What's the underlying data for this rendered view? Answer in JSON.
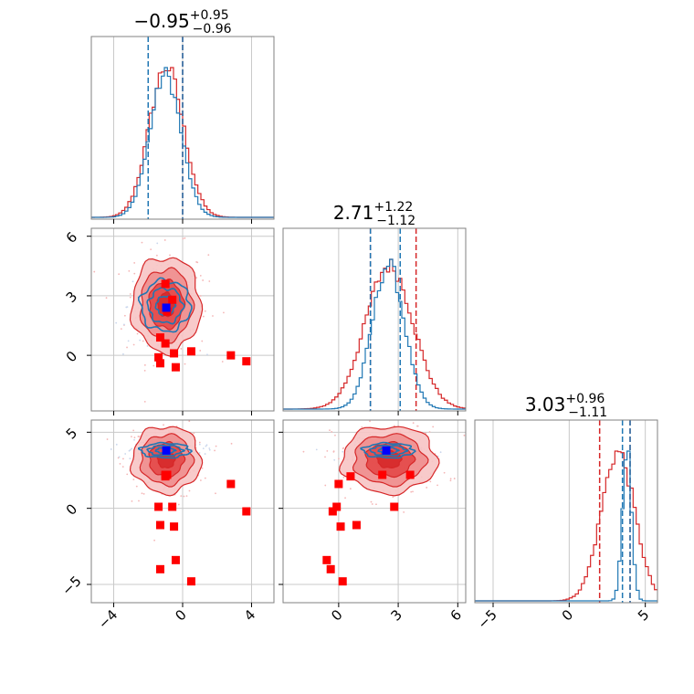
{
  "colors": {
    "red": "#d62728",
    "blue": "#1f77b4",
    "marker_blue": "#0000ff",
    "marker_red": "#ff0000",
    "grid": "#c8c8c8",
    "frame": "#808080"
  },
  "titles": [
    {
      "base": "−0.95",
      "sup": "+0.95",
      "sub": "−0.96"
    },
    {
      "base": "2.71",
      "sup": "+1.22",
      "sub": "−1.12"
    },
    {
      "base": "3.03",
      "sup": "+0.96",
      "sub": "−1.11"
    }
  ],
  "chart_data": {
    "type": "corner",
    "params": [
      {
        "range": [
          -5.3,
          5.3
        ],
        "ticks": [
          -4,
          0,
          4
        ]
      },
      {
        "range": [
          -2.8,
          6.4
        ],
        "ticks": [
          0,
          3,
          6
        ]
      },
      {
        "range": [
          -6.2,
          5.8
        ],
        "ticks": [
          -5,
          0,
          5
        ]
      }
    ],
    "grid": true,
    "series": [
      {
        "color": "red",
        "median": [
          -0.95,
          2.71,
          3.03
        ],
        "quantile_lines": [
          [
            -2.0,
            0.0
          ],
          [
            1.6,
            3.9
          ],
          [
            2.0,
            4.0
          ]
        ],
        "centers": [
          -0.95,
          2.55,
          3.2
        ],
        "sigmas": [
          1.0,
          1.2,
          1.1
        ]
      },
      {
        "color": "blue",
        "median": [
          -0.95,
          2.71,
          3.03
        ],
        "quantile_lines": [
          [
            -2.0,
            0.0
          ],
          [
            1.6,
            3.1
          ],
          [
            3.5,
            4.0
          ]
        ],
        "centers": [
          -1.0,
          2.5,
          3.8
        ],
        "sigmas": [
          0.9,
          0.8,
          0.3
        ]
      }
    ],
    "markers_red": [
      [
        -0.6,
        2.8,
        0.1
      ],
      [
        -1.0,
        3.6,
        2.2
      ],
      [
        -1.4,
        -0.1,
        0.1
      ],
      [
        -0.9,
        2.2,
        2.2
      ],
      [
        0.5,
        0.2,
        -4.8
      ],
      [
        -0.4,
        -0.6,
        -3.4
      ],
      [
        -1.3,
        -0.4,
        -4.0
      ],
      [
        -0.5,
        0.1,
        -1.2
      ],
      [
        2.8,
        0.0,
        1.6
      ],
      [
        3.7,
        -0.3,
        -0.2
      ],
      [
        -1.0,
        0.6,
        2.1
      ],
      [
        -1.3,
        0.9,
        -1.1
      ]
    ],
    "marker_blue": [
      -0.95,
      2.4,
      3.8
    ]
  }
}
